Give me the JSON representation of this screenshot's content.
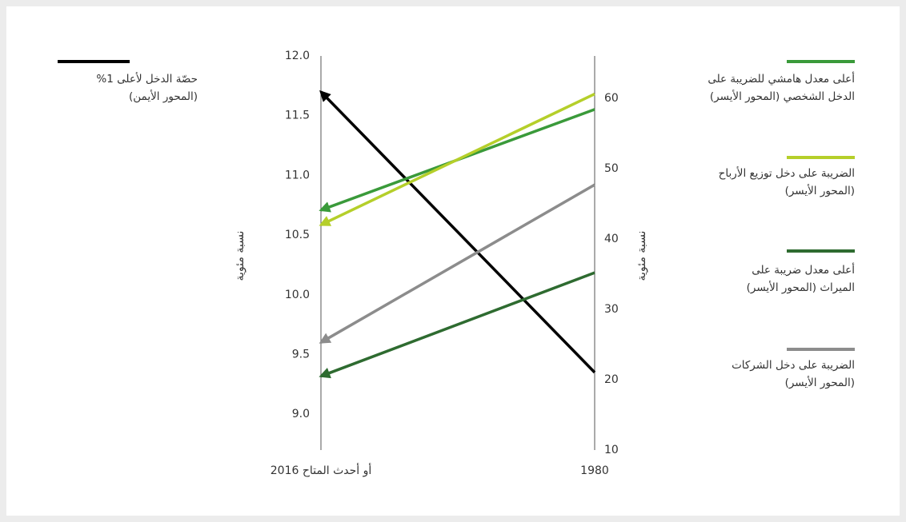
{
  "chart_data": {
    "type": "line",
    "x": [
      "2016 أو أحدث المتاح",
      "1980"
    ],
    "ylabel": "نسبة مئوية",
    "y2label": "نسبة مئوية",
    "ylim": [
      8.7,
      12.0
    ],
    "yticks": [
      {
        "value": 9,
        "label": "9.0"
      },
      9.5,
      {
        "value": 10,
        "label": "10.0"
      },
      10.5,
      {
        "value": 11,
        "label": "11.0"
      },
      11.5,
      {
        "value": 12,
        "label": "12.0"
      }
    ],
    "y2lim": [
      10,
      66
    ],
    "y2ticks": [
      10,
      20,
      30,
      40,
      50,
      60
    ],
    "series": [
      {
        "name": "حصّة الدخل لأعلى 1%\n(المحور الأيمن)",
        "color": "#000000",
        "axis": "y",
        "values": [
          11.7,
          9.35
        ]
      },
      {
        "name": "أعلى معدل هامشي للضريبة على\nالدخل الشخصي (المحور الأيسر)",
        "color": "#3a9a3a",
        "axis": "y2",
        "values": [
          44.1,
          58.4
        ]
      },
      {
        "name": "الضريبة على دخل توزيع الأرباح\n(المحور الأيسر)",
        "color": "#b5cf2a",
        "axis": "y2",
        "values": [
          42.0,
          60.6
        ]
      },
      {
        "name": "أعلى معدل ضريبة على\nالميراث (المحور الأيسر)",
        "color": "#2e6b30",
        "axis": "y2",
        "values": [
          20.5,
          35.2
        ]
      },
      {
        "name": "الضريبة على دخل الشركات\n(المحور الأيسر)",
        "color": "#8c8c8c",
        "axis": "y2",
        "values": [
          25.3,
          47.7
        ]
      }
    ]
  }
}
